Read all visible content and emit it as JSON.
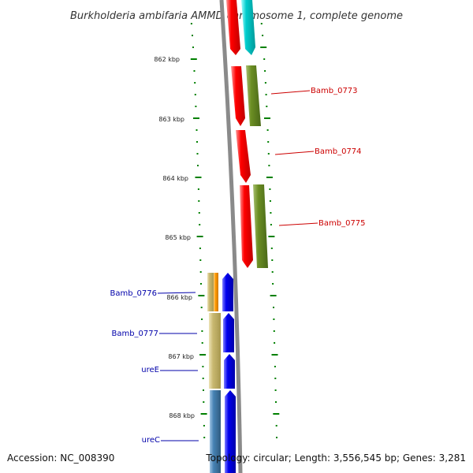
{
  "title": "Burkholderia ambifaria AMMD chromosome 1, complete genome",
  "accession": "Accession: NC_008390",
  "topology": "Topology: circular; Length: 3,556,545 bp; Genes: 3,281",
  "ticks": [
    "862 kbp",
    "863 kbp",
    "864 kbp",
    "865 kbp",
    "866 kbp",
    "867 kbp",
    "868 kbp"
  ],
  "right_genes": [
    "Bamb_0773",
    "Bamb_0774",
    "Bamb_0775"
  ],
  "left_genes": [
    "Bamb_0776",
    "Bamb_0777",
    "ureE",
    "ureC"
  ],
  "colors": {
    "backbone": "#888888",
    "cds_red": "#ff0000",
    "gene_olive": "#6b8e23",
    "cds_blue": "#0000ee",
    "gene_tan": "#c8b870",
    "gene_orange": "#ff9900",
    "gene_steel": "#4682b4",
    "cyan": "#00cccc",
    "tick_green": "#008000",
    "label_red": "#cc0000",
    "label_blue": "#0000aa"
  }
}
